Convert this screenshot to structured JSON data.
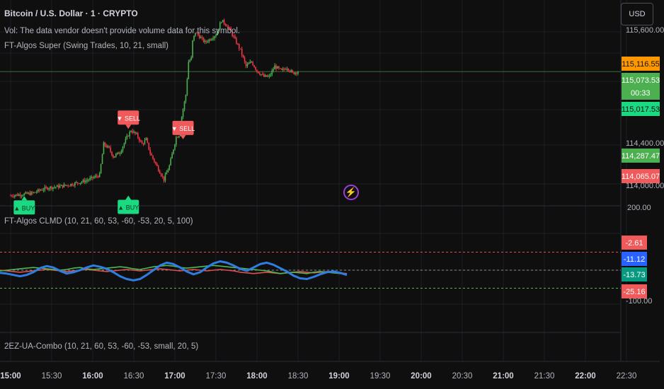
{
  "header": {
    "symbol_title": "Bitcoin / U.S. Dollar · 1 · CRYPTO",
    "volume_note": "Vol: The data vendor doesn't provide volume data for this symbol.",
    "indicator_main": "FT-Algos Super (Swing Trades, 10, 21, small)",
    "indicator_oscillator": "FT-Algos CLMD (10, 21, 60, 53, -60, -53, 20, 5, 100)",
    "indicator_combo": "2EZ-UA-Combo (10, 21, 60, 53, -60, -53, small, 20, 5)"
  },
  "toolbar": {
    "currency_label": "USD"
  },
  "icons": {
    "alert": "lightning-bolt-icon"
  },
  "colors": {
    "background": "#0f0f0f",
    "up": "#4caf50",
    "down": "#f23645",
    "buy": "#1ad980",
    "sell": "#f05a5a",
    "clmd_blue": "#2f7de0",
    "clmd_green": "#4fb84f",
    "clmd_red": "#e05050"
  },
  "price_axis": {
    "top_label": "115,600.00",
    "ticks": [
      "114,400.00"
    ],
    "bottom_label": "114,000.00",
    "badges": [
      {
        "value": "115,116.55",
        "price": 115116.55,
        "color": "#ff9800",
        "text_color": "#111111"
      },
      {
        "value": "115,073.53",
        "price": 115073.53,
        "color": "#4caf50",
        "text_color": "#ffffff",
        "extra": "00:33"
      },
      {
        "value": "115,017.53",
        "price": 115017.53,
        "color": "#1ad980",
        "text_color": "#111111"
      },
      {
        "value": "114,287.47",
        "price": 114287.47,
        "color": "#4caf50",
        "text_color": "#ffffff"
      },
      {
        "value": "114,065.07",
        "price": 114065.07,
        "color": "#f05a5a",
        "text_color": "#ffffff"
      }
    ]
  },
  "oscillator_axis": {
    "top_label": "200.00",
    "bottom_label": "-100.00",
    "badges": [
      {
        "value": "-2.61",
        "level": -2.61,
        "color": "#f05a5a",
        "text_color": "#ffffff"
      },
      {
        "value": "-11.12",
        "level": -11.12,
        "color": "#2962ff",
        "text_color": "#ffffff"
      },
      {
        "value": "-13.73",
        "level": -13.73,
        "color": "#089981",
        "text_color": "#ffffff"
      },
      {
        "value": "-25.16",
        "level": -25.16,
        "color": "#f05a5a",
        "text_color": "#ffffff"
      }
    ]
  },
  "time_axis": [
    "15:00",
    "15:30",
    "16:00",
    "16:30",
    "17:00",
    "17:30",
    "18:00",
    "18:30",
    "19:00",
    "19:30",
    "20:00",
    "20:30",
    "21:00",
    "21:30",
    "22:00",
    "22:30"
  ],
  "chart_data": {
    "type": "candlestick",
    "symbol": "BTCUSD",
    "price_range": [
      113900,
      115700
    ],
    "close_path": [
      [
        0,
        113990
      ],
      [
        8,
        114000
      ],
      [
        16,
        114010
      ],
      [
        22,
        114040
      ],
      [
        28,
        114060
      ],
      [
        36,
        114070
      ],
      [
        45,
        114090
      ],
      [
        55,
        114120
      ],
      [
        65,
        114170
      ],
      [
        68,
        114440
      ],
      [
        72,
        114400
      ],
      [
        75,
        114330
      ],
      [
        80,
        114370
      ],
      [
        85,
        114500
      ],
      [
        88,
        114560
      ],
      [
        92,
        114520
      ],
      [
        96,
        114440
      ],
      [
        99,
        114480
      ],
      [
        102,
        114360
      ],
      [
        108,
        114220
      ],
      [
        112,
        114130
      ],
      [
        116,
        114250
      ],
      [
        119,
        114400
      ],
      [
        121,
        114500
      ],
      [
        123,
        114520
      ],
      [
        125,
        114680
      ],
      [
        128,
        114870
      ],
      [
        130,
        115160
      ],
      [
        132,
        115190
      ],
      [
        133,
        115340
      ],
      [
        135,
        115420
      ],
      [
        138,
        115380
      ],
      [
        142,
        115330
      ],
      [
        146,
        115360
      ],
      [
        150,
        115400
      ],
      [
        154,
        115520
      ],
      [
        158,
        115480
      ],
      [
        161,
        115420
      ],
      [
        164,
        115350
      ],
      [
        168,
        115260
      ],
      [
        172,
        115120
      ],
      [
        176,
        115160
      ],
      [
        180,
        115080
      ],
      [
        185,
        115030
      ],
      [
        189,
        115030
      ],
      [
        193,
        115120
      ],
      [
        198,
        115080
      ],
      [
        202,
        115110
      ],
      [
        206,
        115060
      ],
      [
        210,
        115075
      ]
    ],
    "signals": [
      {
        "type": "sell",
        "label": "▼ SELL",
        "minute": 86,
        "price": 114560
      },
      {
        "type": "sell",
        "label": "▼ SELL",
        "minute": 126,
        "price": 114470
      },
      {
        "type": "buy",
        "label": "▲ BUY",
        "minute": 86,
        "price": 113990
      },
      {
        "type": "buy",
        "label": "▲ BUY",
        "minute": 10,
        "price": 113985
      }
    ],
    "oscillator": {
      "levels": [
        53,
        -53
      ],
      "blue": [
        -8,
        -10,
        -14,
        -18,
        -14,
        -6,
        6,
        12,
        8,
        -2,
        -10,
        -6,
        0,
        8,
        14,
        10,
        4,
        -6,
        -18,
        -26,
        -30,
        -26,
        -14,
        0,
        14,
        22,
        18,
        8,
        -4,
        -12,
        -6,
        8,
        20,
        26,
        22,
        14,
        4,
        -2,
        8,
        18,
        22,
        16,
        6,
        -4,
        -16,
        -24,
        -26,
        -20,
        -12,
        -6,
        -4,
        -8,
        -14
      ],
      "green": [
        -2,
        0,
        2,
        4,
        6,
        8,
        6,
        4,
        2,
        0,
        2,
        6,
        8,
        4,
        2,
        4,
        6,
        8,
        10,
        8,
        4,
        2,
        6,
        10,
        12,
        14,
        12,
        8,
        6,
        8,
        10,
        12,
        14,
        12,
        10,
        8,
        6,
        4,
        2,
        0,
        -2,
        -6,
        -10,
        -8,
        -6,
        -8,
        -10,
        -6,
        -4,
        -6,
        -8,
        -10,
        -12
      ],
      "red": [
        0,
        -2,
        -4,
        -6,
        -4,
        -2,
        0,
        2,
        0,
        -2,
        -4,
        -2,
        0,
        2,
        0,
        -2,
        -4,
        -2,
        0,
        2,
        0,
        -2,
        0,
        2,
        4,
        2,
        0,
        -2,
        0,
        2,
        0,
        -2,
        0,
        2,
        0,
        -2,
        -6,
        -8,
        -10,
        -8,
        -6,
        -8,
        -10,
        -8,
        -6,
        -4,
        -6,
        -8,
        -6,
        -4,
        -6,
        -8,
        -10
      ]
    }
  }
}
